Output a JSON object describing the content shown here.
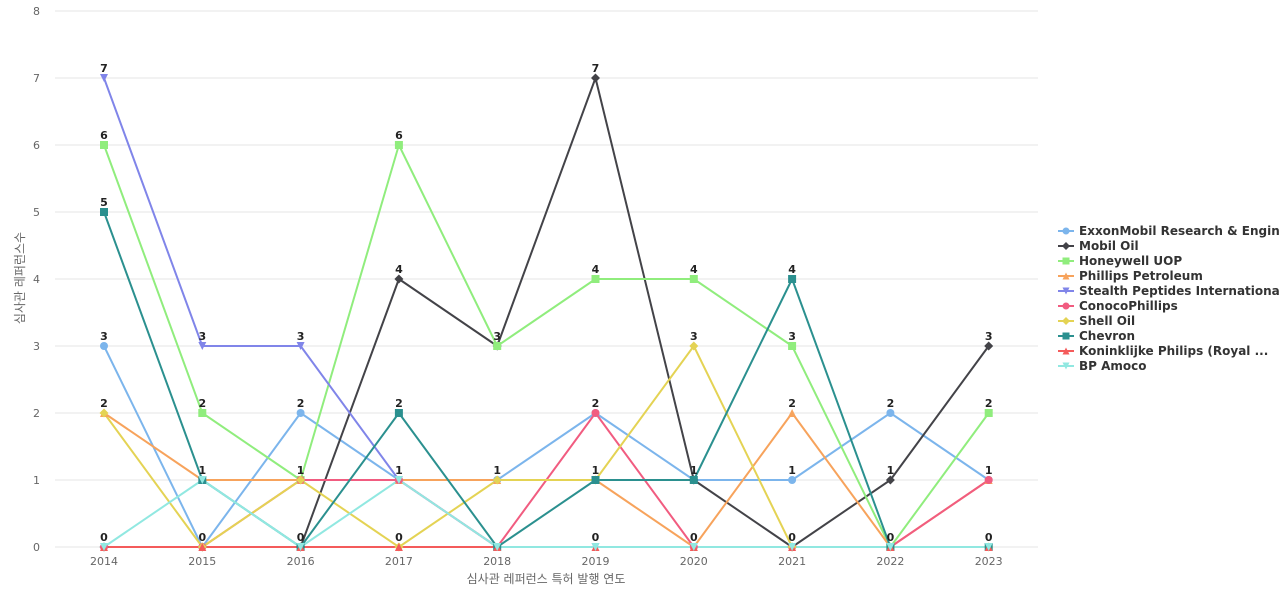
{
  "chart_data": {
    "type": "line",
    "title": "",
    "xlabel": "심사관 레퍼런스 특허 발행 연도",
    "ylabel": "심사관 레퍼런스수",
    "x": [
      "2014",
      "2015",
      "2016",
      "2017",
      "2018",
      "2019",
      "2020",
      "2021",
      "2022",
      "2023"
    ],
    "ylim": [
      0,
      8
    ],
    "yticks": [
      0,
      1,
      2,
      3,
      4,
      5,
      6,
      7,
      8
    ],
    "grid": true,
    "legend_position": "right",
    "series": [
      {
        "name": "ExxonMobil Research & Engin...",
        "color": "#7cb5ec",
        "marker": "circle",
        "values": [
          3,
          0,
          2,
          1,
          1,
          2,
          1,
          1,
          2,
          1
        ]
      },
      {
        "name": "Mobil Oil",
        "color": "#434348",
        "marker": "diamond",
        "values": [
          0,
          0,
          0,
          4,
          3,
          7,
          1,
          0,
          1,
          3
        ]
      },
      {
        "name": "Honeywell UOP",
        "color": "#90ed7d",
        "marker": "square",
        "values": [
          6,
          2,
          1,
          6,
          3,
          4,
          4,
          3,
          0,
          2
        ]
      },
      {
        "name": "Phillips Petroleum",
        "color": "#f7a35c",
        "marker": "triangle",
        "values": [
          2,
          1,
          1,
          1,
          1,
          1,
          0,
          2,
          0,
          1
        ]
      },
      {
        "name": "Stealth Peptides International",
        "color": "#8085e9",
        "marker": "triangle-down",
        "values": [
          7,
          3,
          3,
          1,
          0,
          0,
          0,
          0,
          0,
          0
        ]
      },
      {
        "name": "ConocoPhillips",
        "color": "#f15c80",
        "marker": "circle",
        "values": [
          0,
          0,
          1,
          1,
          0,
          2,
          0,
          0,
          0,
          1
        ]
      },
      {
        "name": "Shell Oil",
        "color": "#e4d354",
        "marker": "diamond",
        "values": [
          2,
          0,
          1,
          0,
          1,
          1,
          3,
          0,
          0,
          0
        ]
      },
      {
        "name": "Chevron",
        "color": "#2b908f",
        "marker": "square",
        "values": [
          5,
          1,
          0,
          2,
          0,
          1,
          1,
          4,
          0,
          0
        ]
      },
      {
        "name": "Koninklijke Philips (Royal ...",
        "color": "#f45b5b",
        "marker": "triangle",
        "values": [
          0,
          0,
          0,
          0,
          0,
          0,
          0,
          0,
          0,
          0
        ]
      },
      {
        "name": "BP Amoco",
        "color": "#91e8e1",
        "marker": "triangle-down",
        "values": [
          0,
          1,
          0,
          1,
          0,
          0,
          0,
          0,
          0,
          0
        ]
      }
    ],
    "data_labels": [
      {
        "x": "2014",
        "value": 7
      },
      {
        "x": "2014",
        "value": 6
      },
      {
        "x": "2014",
        "value": 5
      },
      {
        "x": "2014",
        "value": 3
      },
      {
        "x": "2014",
        "value": 2
      },
      {
        "x": "2014",
        "value": 0
      },
      {
        "x": "2015",
        "value": 3
      },
      {
        "x": "2015",
        "value": 2
      },
      {
        "x": "2015",
        "value": 1
      },
      {
        "x": "2015",
        "value": 0
      },
      {
        "x": "2016",
        "value": 3
      },
      {
        "x": "2016",
        "value": 2
      },
      {
        "x": "2016",
        "value": 1
      },
      {
        "x": "2016",
        "value": 0
      },
      {
        "x": "2017",
        "value": 6
      },
      {
        "x": "2017",
        "value": 4
      },
      {
        "x": "2017",
        "value": 2
      },
      {
        "x": "2017",
        "value": 1
      },
      {
        "x": "2017",
        "value": 0
      },
      {
        "x": "2018",
        "value": 3
      },
      {
        "x": "2018",
        "value": 1
      },
      {
        "x": "2019",
        "value": 7
      },
      {
        "x": "2019",
        "value": 4
      },
      {
        "x": "2019",
        "value": 2
      },
      {
        "x": "2019",
        "value": 1
      },
      {
        "x": "2019",
        "value": 0
      },
      {
        "x": "2020",
        "value": 4
      },
      {
        "x": "2020",
        "value": 3
      },
      {
        "x": "2020",
        "value": 1
      },
      {
        "x": "2020",
        "value": 0
      },
      {
        "x": "2021",
        "value": 4
      },
      {
        "x": "2021",
        "value": 3
      },
      {
        "x": "2021",
        "value": 2
      },
      {
        "x": "2021",
        "value": 1
      },
      {
        "x": "2021",
        "value": 0
      },
      {
        "x": "2022",
        "value": 2
      },
      {
        "x": "2022",
        "value": 1
      },
      {
        "x": "2022",
        "value": 0
      },
      {
        "x": "2023",
        "value": 3
      },
      {
        "x": "2023",
        "value": 2
      },
      {
        "x": "2023",
        "value": 1
      },
      {
        "x": "2023",
        "value": 0
      }
    ]
  }
}
